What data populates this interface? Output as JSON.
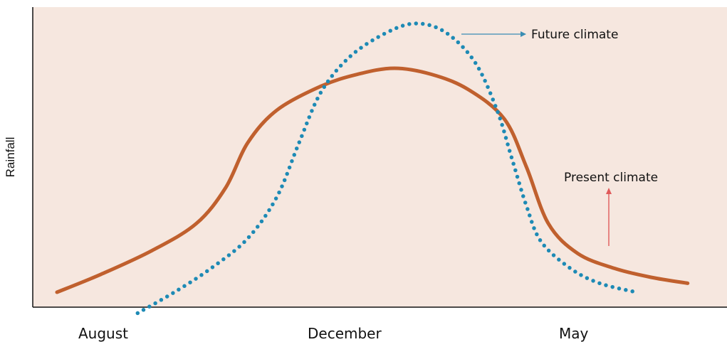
{
  "chart_data": {
    "type": "line",
    "xlabel": "",
    "ylabel": "Rainfall",
    "x_tick_labels": [
      "August",
      "December",
      "May"
    ],
    "grid": false,
    "legend": "none",
    "series": [
      {
        "name": "Present climate",
        "style": "solid",
        "color": "#c0602e",
        "points": [
          [
            0,
            0.05
          ],
          [
            0.06,
            0.11
          ],
          [
            0.13,
            0.19
          ],
          [
            0.19,
            0.28
          ],
          [
            0.23,
            0.4
          ],
          [
            0.26,
            0.55
          ],
          [
            0.3,
            0.66
          ],
          [
            0.36,
            0.74
          ],
          [
            0.41,
            0.78
          ],
          [
            0.46,
            0.8
          ],
          [
            0.51,
            0.78
          ],
          [
            0.56,
            0.73
          ],
          [
            0.61,
            0.63
          ],
          [
            0.64,
            0.47
          ],
          [
            0.67,
            0.28
          ],
          [
            0.71,
            0.18
          ],
          [
            0.76,
            0.13
          ],
          [
            0.81,
            0.1
          ],
          [
            0.86,
            0.08
          ]
        ]
      },
      {
        "name": "Future climate",
        "style": "dotted",
        "color": "#1d8ab5",
        "points": [
          [
            0.11,
            -0.02
          ],
          [
            0.16,
            0.05
          ],
          [
            0.21,
            0.13
          ],
          [
            0.26,
            0.23
          ],
          [
            0.3,
            0.37
          ],
          [
            0.33,
            0.55
          ],
          [
            0.36,
            0.72
          ],
          [
            0.4,
            0.84
          ],
          [
            0.45,
            0.92
          ],
          [
            0.49,
            0.95
          ],
          [
            0.53,
            0.92
          ],
          [
            0.57,
            0.82
          ],
          [
            0.6,
            0.66
          ],
          [
            0.62,
            0.5
          ],
          [
            0.64,
            0.34
          ],
          [
            0.66,
            0.22
          ],
          [
            0.7,
            0.13
          ],
          [
            0.74,
            0.08
          ],
          [
            0.79,
            0.05
          ]
        ]
      }
    ],
    "annotations": {
      "future": "Future climate",
      "present": "Present climate"
    },
    "colors": {
      "background": "#f6e7df",
      "axis": "#111111",
      "present_arrow": "#e05a5a",
      "future_arrow": "#3a8db3"
    }
  }
}
